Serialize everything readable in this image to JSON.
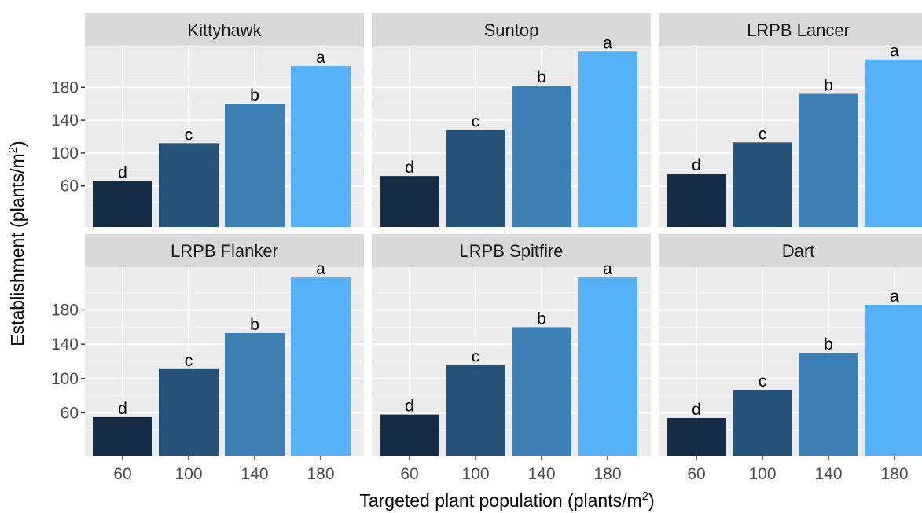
{
  "chart_data": {
    "type": "bar",
    "xlabel": "Targeted plant population (plants/m",
    "ylabel": "Establishment (plants/m",
    "unit_superscript": "2",
    "categories": [
      "60",
      "100",
      "140",
      "180"
    ],
    "yticks": [
      "60",
      "100",
      "140",
      "180"
    ],
    "ylim": [
      10,
      230
    ],
    "legend": "none",
    "grid": true,
    "colors": [
      "#152b45",
      "#26537a",
      "#3b7fb5",
      "#56b1f7"
    ],
    "facets": [
      {
        "title": "Kittyhawk",
        "values": [
          66,
          112,
          160,
          206
        ],
        "labels": [
          "d",
          "c",
          "b",
          "a"
        ]
      },
      {
        "title": "Suntop",
        "values": [
          72,
          128,
          182,
          224
        ],
        "labels": [
          "d",
          "c",
          "b",
          "a"
        ]
      },
      {
        "title": "LRPB Lancer",
        "values": [
          75,
          113,
          172,
          214
        ],
        "labels": [
          "d",
          "c",
          "b",
          "a"
        ]
      },
      {
        "title": "LRPB Flanker",
        "values": [
          55,
          111,
          153,
          218
        ],
        "labels": [
          "d",
          "c",
          "b",
          "a"
        ]
      },
      {
        "title": "LRPB Spitfire",
        "values": [
          58,
          116,
          160,
          218
        ],
        "labels": [
          "d",
          "c",
          "b",
          "a"
        ]
      },
      {
        "title": "Dart",
        "values": [
          54,
          87,
          130,
          186
        ],
        "labels": [
          "d",
          "c",
          "b",
          "a"
        ]
      }
    ]
  }
}
